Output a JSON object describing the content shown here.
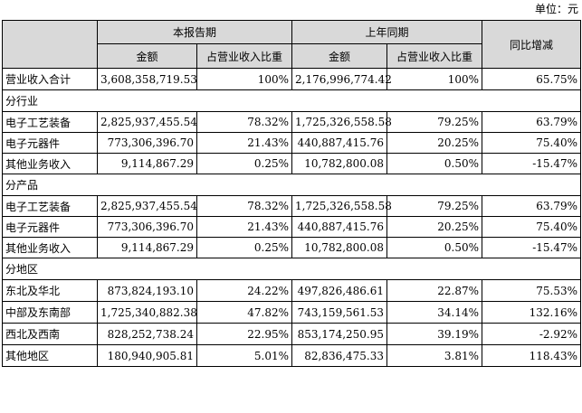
{
  "unit_label": "单位：元",
  "header": {
    "current_period": "本报告期",
    "prior_period": "上年同期",
    "yoy": "同比增减",
    "amount": "金额",
    "share": "占营业收入比重"
  },
  "total": {
    "label": "营业收入合计",
    "cur_amount": "3,608,358,719.53",
    "cur_share": "100%",
    "prior_amount": "2,176,996,774.42",
    "prior_share": "100%",
    "yoy": "65.75%"
  },
  "sections": [
    {
      "title": "分行业",
      "rows": [
        {
          "label": "电子工艺装备",
          "cur_amount": "2,825,937,455.54",
          "cur_share": "78.32%",
          "prior_amount": "1,725,326,558.58",
          "prior_share": "79.25%",
          "yoy": "63.79%"
        },
        {
          "label": "电子元器件",
          "cur_amount": "773,306,396.70",
          "cur_share": "21.43%",
          "prior_amount": "440,887,415.76",
          "prior_share": "20.25%",
          "yoy": "75.40%"
        },
        {
          "label": "其他业务收入",
          "cur_amount": "9,114,867.29",
          "cur_share": "0.25%",
          "prior_amount": "10,782,800.08",
          "prior_share": "0.50%",
          "yoy": "-15.47%"
        }
      ]
    },
    {
      "title": "分产品",
      "rows": [
        {
          "label": "电子工艺装备",
          "cur_amount": "2,825,937,455.54",
          "cur_share": "78.32%",
          "prior_amount": "1,725,326,558.58",
          "prior_share": "79.25%",
          "yoy": "63.79%"
        },
        {
          "label": "电子元器件",
          "cur_amount": "773,306,396.70",
          "cur_share": "21.43%",
          "prior_amount": "440,887,415.76",
          "prior_share": "20.25%",
          "yoy": "75.40%"
        },
        {
          "label": "其他业务收入",
          "cur_amount": "9,114,867.29",
          "cur_share": "0.25%",
          "prior_amount": "10,782,800.08",
          "prior_share": "0.50%",
          "yoy": "-15.47%"
        }
      ]
    },
    {
      "title": "分地区",
      "rows": [
        {
          "label": "东北及华北",
          "cur_amount": "873,824,193.10",
          "cur_share": "24.22%",
          "prior_amount": "497,826,486.61",
          "prior_share": "22.87%",
          "yoy": "75.53%"
        },
        {
          "label": "中部及东南部",
          "cur_amount": "1,725,340,882.38",
          "cur_share": "47.82%",
          "prior_amount": "743,159,561.53",
          "prior_share": "34.14%",
          "yoy": "132.16%"
        },
        {
          "label": "西北及西南",
          "cur_amount": "828,252,738.24",
          "cur_share": "22.95%",
          "prior_amount": "853,174,250.95",
          "prior_share": "39.19%",
          "yoy": "-2.92%"
        },
        {
          "label": "其他地区",
          "cur_amount": "180,940,905.81",
          "cur_share": "5.01%",
          "prior_amount": "82,836,475.33",
          "prior_share": "3.81%",
          "yoy": "118.43%"
        }
      ]
    }
  ]
}
